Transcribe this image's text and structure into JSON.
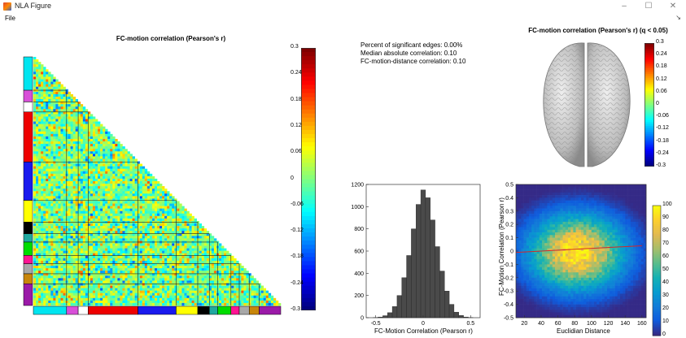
{
  "window": {
    "title": "NLA Figure",
    "minimize": "–",
    "maximize": "☐",
    "close": "✕"
  },
  "menu": {
    "file": "File",
    "toolbar_toggle": "↘"
  },
  "matrix_panel": {
    "title": "FC-motion correlation (Pearson's r)",
    "colorbar_ticks": [
      "0.3",
      "0.24",
      "0.18",
      "0.12",
      "0.06",
      "0",
      "-0.06",
      "-0.12",
      "-0.18",
      "-0.24",
      "-0.3"
    ],
    "network_colors": [
      "#00e5f0",
      "#d84fd8",
      "#ffffff",
      "#ee0000",
      "#1a1aee",
      "#ffff00",
      "#000000",
      "#20a8a0",
      "#00dd00",
      "#ff1493",
      "#a8a8a8",
      "#c8860a",
      "#9b1aa8"
    ],
    "network_sizes": [
      40,
      14,
      12,
      60,
      46,
      26,
      14,
      10,
      16,
      10,
      12,
      12,
      26
    ]
  },
  "stats": {
    "line1": "Percent of significant edges: 0.00%",
    "line2": "Median absolute correlation: 0.10",
    "line3": "FC-motion-distance correlation: 0.10"
  },
  "brain_panel": {
    "title": "FC-motion correlation (Pearson's r) (q < 0.05)",
    "colorbar_ticks": [
      "0.3",
      "0.24",
      "0.18",
      "0.12",
      "0.06",
      "0",
      "-0.06",
      "-0.12",
      "-0.18",
      "-0.24",
      "-0.3"
    ]
  },
  "histogram": {
    "xlabel": "FC-Motion Correlation (Pearson r)",
    "yticks": [
      "1200",
      "1000",
      "800",
      "600",
      "400",
      "200",
      "0"
    ],
    "xticks": [
      "-0.5",
      "0",
      "0.5"
    ]
  },
  "scatter": {
    "xlabel": "Euclidian Distance",
    "ylabel": "FC-Motion Correlation (Pearson r)",
    "yticks": [
      "0.5",
      "0.4",
      "0.3",
      "0.2",
      "0.1",
      "0",
      "-0.1",
      "-0.2",
      "-0.3",
      "-0.4",
      "-0.5"
    ],
    "xticks": [
      "20",
      "40",
      "60",
      "80",
      "100",
      "120",
      "140",
      "160"
    ],
    "colorbar_ticks": [
      "100",
      "90",
      "80",
      "70",
      "60",
      "50",
      "40",
      "30",
      "20",
      "10",
      "0"
    ]
  },
  "chart_data": [
    {
      "type": "heatmap",
      "title": "FC-motion correlation (Pearson's r)",
      "color_range": [
        -0.3,
        0.3
      ]
    },
    {
      "type": "bar",
      "xlabel": "FC-Motion Correlation (Pearson r)",
      "ylim": [
        0,
        1200
      ],
      "xlim": [
        -0.6,
        0.6
      ],
      "x": [
        -0.5,
        -0.45,
        -0.4,
        -0.35,
        -0.3,
        -0.25,
        -0.2,
        -0.15,
        -0.1,
        -0.05,
        0,
        0.05,
        0.1,
        0.15,
        0.2,
        0.25,
        0.3,
        0.35,
        0.4,
        0.45,
        0.5
      ],
      "values": [
        2,
        6,
        18,
        45,
        100,
        200,
        360,
        560,
        800,
        1020,
        1150,
        1080,
        880,
        640,
        420,
        240,
        120,
        50,
        20,
        6,
        2
      ]
    },
    {
      "type": "heatmap",
      "xlabel": "Euclidian Distance",
      "ylabel": "FC-Motion Correlation (Pearson r)",
      "xlim": [
        10,
        165
      ],
      "ylim": [
        -0.5,
        0.5
      ],
      "color_range": [
        0,
        100
      ],
      "fit_line": {
        "x": [
          10,
          160
        ],
        "y": [
          -0.01,
          0.04
        ]
      }
    }
  ]
}
